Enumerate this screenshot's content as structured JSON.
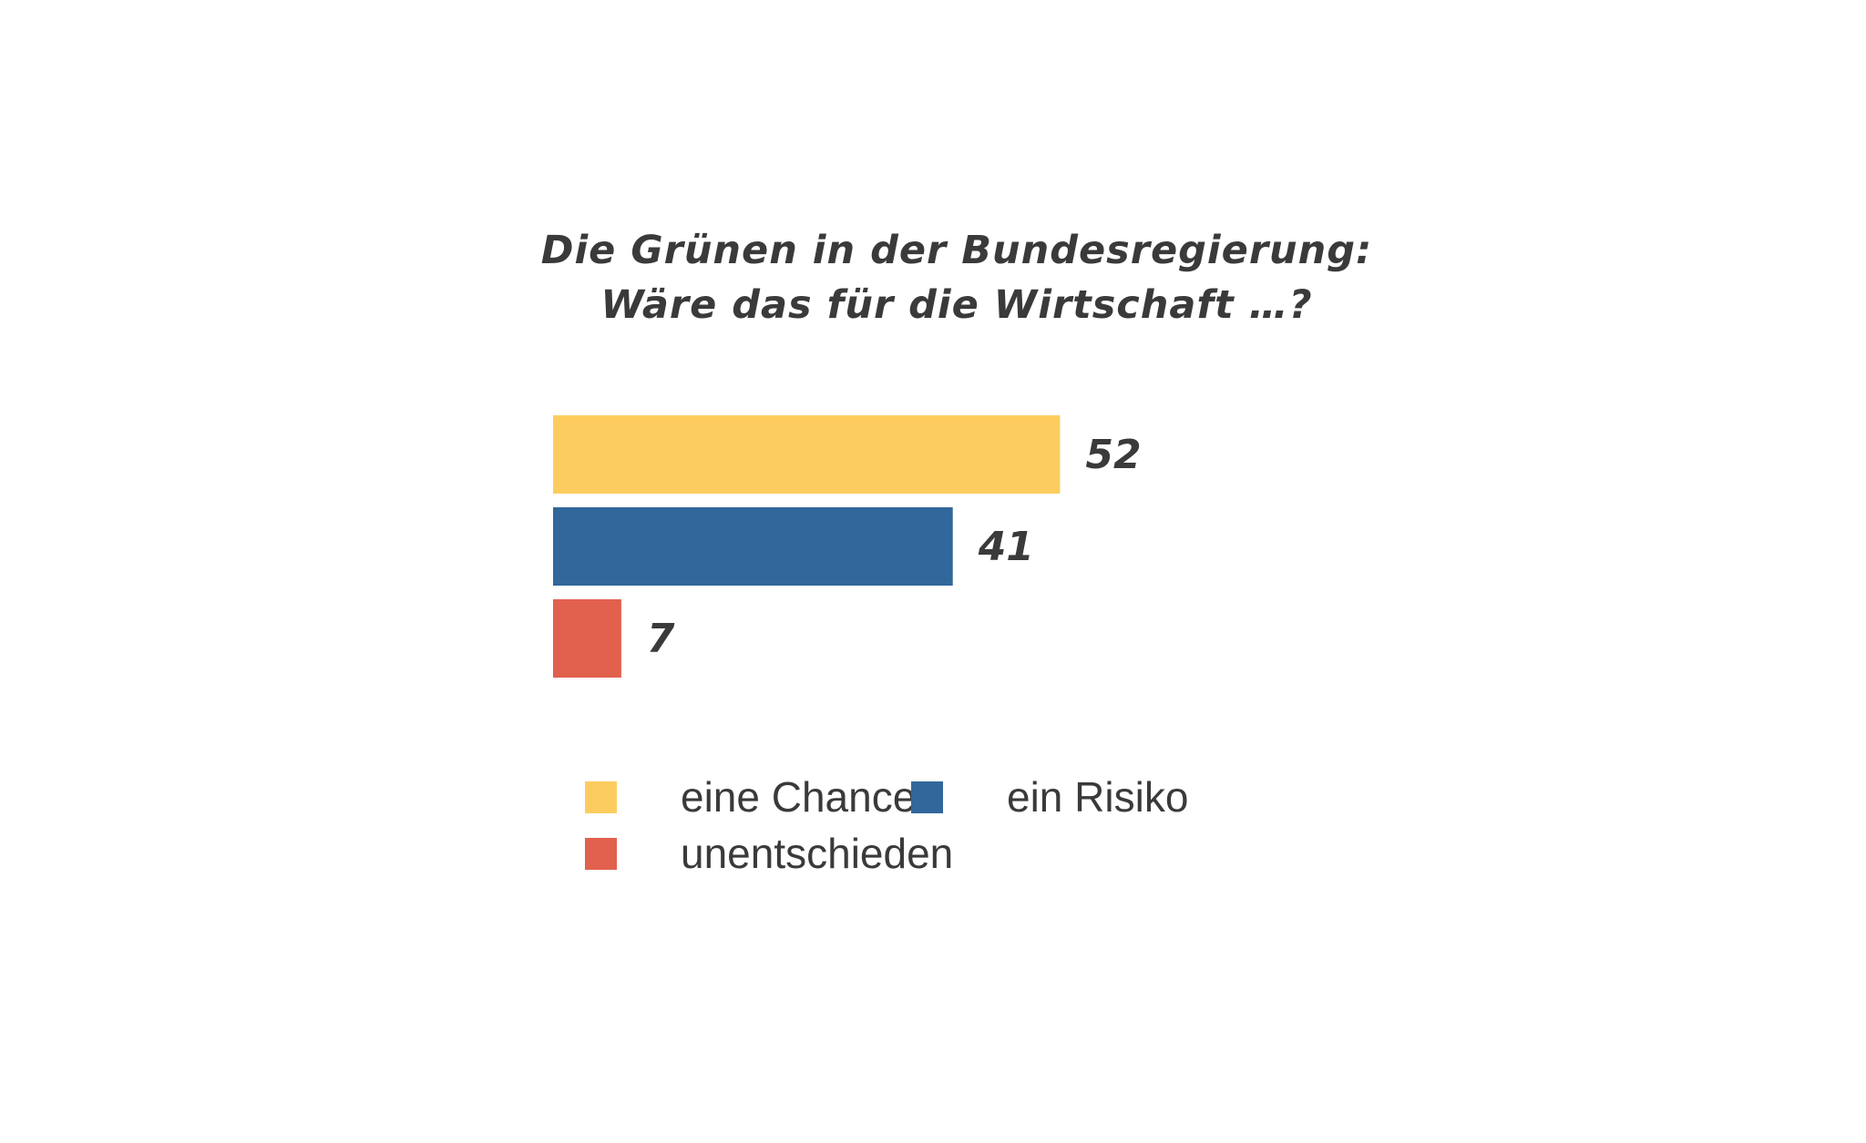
{
  "chart_data": {
    "type": "bar",
    "orientation": "horizontal",
    "title_lines": [
      "Die Grünen in der Bundesregierung:",
      "Wäre das für die Wirtschaft …?"
    ],
    "categories": [
      "eine Chance",
      "ein Risiko",
      "unentschieden"
    ],
    "values": [
      52,
      41,
      7
    ],
    "value_labels": [
      "52",
      "41",
      "7"
    ],
    "colors": [
      "#FCCD5E",
      "#31679A",
      "#E2604E"
    ],
    "xlim": [
      0,
      100
    ],
    "grid": false,
    "axes_visible": false,
    "legend": {
      "placement": "bottom",
      "entries": [
        "eine Chance",
        "ein Risiko",
        "unentschieden"
      ]
    }
  }
}
